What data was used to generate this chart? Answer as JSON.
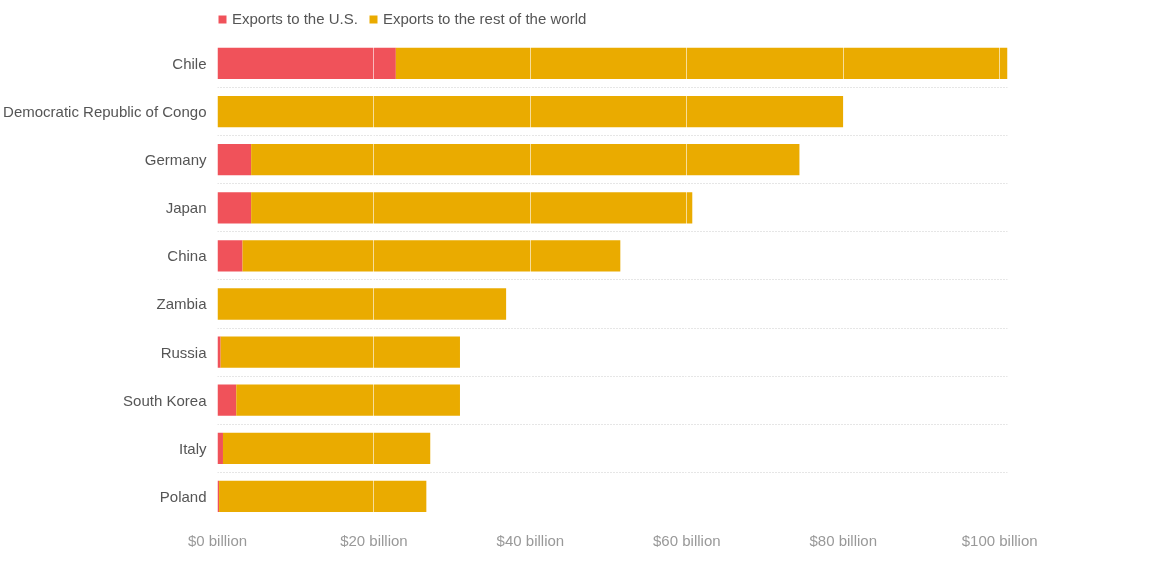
{
  "chart_data": {
    "type": "bar",
    "orientation": "horizontal",
    "stacked": true,
    "categories": [
      "Chile",
      "Democratic Republic of Congo",
      "Germany",
      "Japan",
      "China",
      "Zambia",
      "Russia",
      "South Korea",
      "Italy",
      "Poland"
    ],
    "series": [
      {
        "name": "Exports to the U.S.",
        "color": "#f0525a",
        "values": [
          22.8,
          0,
          4.3,
          4.3,
          3.2,
          0,
          0.4,
          2.4,
          0.7,
          0.2
        ]
      },
      {
        "name": "Exports to the rest of the world",
        "color": "#eaab00",
        "values": [
          78.2,
          80.0,
          70.1,
          56.4,
          48.3,
          36.9,
          30.6,
          28.6,
          26.5,
          26.5
        ]
      }
    ],
    "xlim": [
      0,
      101
    ],
    "xticks": [
      {
        "value": 0,
        "label": "$0 billion"
      },
      {
        "value": 20,
        "label": "$20 billion"
      },
      {
        "value": 40,
        "label": "$40 billion"
      },
      {
        "value": 60,
        "label": "$60 billion"
      },
      {
        "value": 80,
        "label": "$80 billion"
      },
      {
        "value": 100,
        "label": "$100 billion"
      }
    ],
    "grid": true,
    "legend": "top left"
  }
}
